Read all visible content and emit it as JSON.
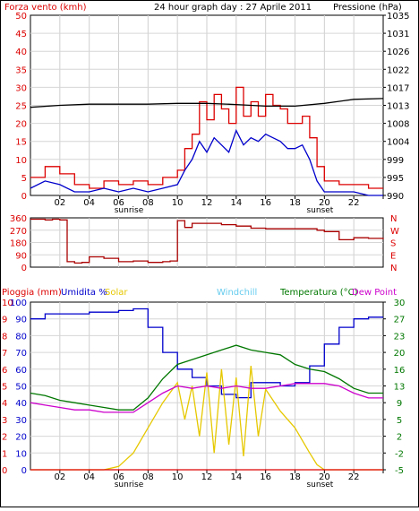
{
  "chart_data": [
    {
      "type": "line",
      "title": "24 hour graph day : 27 Aprile 2011",
      "ylabel_left": "Forza vento (kmh)",
      "ylabel_right": "Pressione (hPa)",
      "x_ticks": [
        "02",
        "04",
        "06",
        "08",
        "10",
        "12",
        "14",
        "16",
        "18",
        "20",
        "22",
        ""
      ],
      "x_markers": [
        "sunrise",
        "sunset"
      ],
      "y_left_ticks": [
        "0",
        "5",
        "10",
        "15",
        "20",
        "25",
        "30",
        "35",
        "40",
        "45",
        "50"
      ],
      "y_left_range": [
        0,
        50
      ],
      "y_right_ticks": [
        "990",
        "995",
        "999",
        "1004",
        "1008",
        "1013",
        "1017",
        "1022",
        "1026",
        "1031",
        "1035"
      ],
      "y_right_range": [
        990,
        1035
      ],
      "series": [
        {
          "color": "#dd0000",
          "x": [
            0,
            1,
            2,
            3,
            4,
            5,
            6,
            7,
            8,
            9,
            10,
            10.5,
            11,
            11.5,
            12,
            12.5,
            13,
            13.5,
            14,
            14.5,
            15,
            15.5,
            16,
            16.5,
            17,
            17.5,
            18,
            18.5,
            19,
            19.5,
            20,
            21,
            22,
            23,
            24
          ],
          "values": [
            5,
            8,
            6,
            3,
            2,
            4,
            3,
            4,
            3,
            5,
            7,
            13,
            17,
            26,
            21,
            28,
            24,
            20,
            30,
            22,
            26,
            22,
            28,
            25,
            24,
            20,
            20,
            22,
            16,
            8,
            4,
            3,
            3,
            2,
            2
          ]
        },
        {
          "color": "#0000cc",
          "x": [
            0,
            1,
            2,
            3,
            4,
            5,
            6,
            7,
            8,
            9,
            10,
            10.5,
            11,
            11.5,
            12,
            12.5,
            13,
            13.5,
            14,
            14.5,
            15,
            15.5,
            16,
            16.5,
            17,
            17.5,
            18,
            18.5,
            19,
            19.5,
            20,
            21,
            22,
            23,
            24
          ],
          "values": [
            2,
            4,
            3,
            1,
            1,
            2,
            1,
            2,
            1,
            2,
            3,
            7,
            10,
            15,
            12,
            16,
            14,
            12,
            18,
            14,
            16,
            15,
            17,
            16,
            15,
            13,
            13,
            14,
            10,
            4,
            1,
            1,
            1,
            0,
            0
          ]
        },
        {
          "color": "#000000",
          "x": [
            0,
            2,
            4,
            6,
            8,
            10,
            12,
            14,
            16,
            18,
            20,
            22,
            24
          ],
          "values": [
            1012,
            1012.5,
            1012.8,
            1012.8,
            1012.8,
            1013,
            1013,
            1012.7,
            1012.3,
            1012.3,
            1013,
            1014,
            1014.2
          ]
        }
      ]
    },
    {
      "type": "line",
      "y_ticks": [
        "360",
        "270",
        "180",
        "90",
        "0"
      ],
      "y_range": [
        0,
        360
      ],
      "compass_labels": [
        "N",
        "W",
        "S",
        "E",
        "N"
      ],
      "series": [
        {
          "color": "#aa0000",
          "x": [
            0,
            0.5,
            1,
            1.5,
            2,
            2.5,
            3,
            3.5,
            4,
            5,
            6,
            7,
            8,
            9,
            9.5,
            10,
            10.5,
            11,
            12,
            13,
            14,
            15,
            16,
            17,
            18,
            19,
            19.5,
            20,
            21,
            22,
            23,
            24
          ],
          "values": [
            350,
            350,
            345,
            350,
            345,
            40,
            30,
            35,
            75,
            65,
            40,
            45,
            35,
            40,
            45,
            340,
            290,
            320,
            320,
            310,
            300,
            285,
            280,
            280,
            280,
            280,
            270,
            260,
            200,
            215,
            210,
            205
          ]
        }
      ]
    },
    {
      "type": "line",
      "legend": [
        "Pioggia (mm)",
        "Umidita %",
        "Solar",
        "Windchill",
        "Temperatura (°C)",
        "Dew Point"
      ],
      "legend_colors": [
        "#dd0000",
        "#0000cc",
        "#e6c800",
        "#66ccee",
        "#007700",
        "#cc00cc"
      ],
      "x_ticks": [
        "02",
        "04",
        "06",
        "08",
        "10",
        "12",
        "14",
        "16",
        "18",
        "20",
        "22",
        ""
      ],
      "x_markers": [
        "sunrise",
        "sunset"
      ],
      "y_left_ticks_outer": [
        "0",
        "1",
        "2",
        "3",
        "4",
        "5",
        "6",
        "7",
        "8",
        "9",
        "10"
      ],
      "y_left_ticks_inner": [
        "0",
        "10",
        "20",
        "30",
        "40",
        "50",
        "60",
        "70",
        "80",
        "90",
        "100"
      ],
      "y_right_ticks": [
        "-5",
        "-2",
        "2",
        "5",
        "9",
        "13",
        "16",
        "20",
        "23",
        "27",
        "30"
      ],
      "series": [
        {
          "name": "Umidita %",
          "color": "#0000cc",
          "x": [
            0,
            1,
            2,
            4,
            6,
            7,
            8,
            9,
            10,
            11,
            12,
            13,
            14,
            15,
            16,
            17,
            18,
            19,
            20,
            21,
            22,
            23,
            24
          ],
          "values": [
            90,
            93,
            93,
            94,
            95,
            96,
            85,
            70,
            60,
            55,
            50,
            45,
            43,
            52,
            52,
            50,
            52,
            62,
            75,
            85,
            90,
            91,
            91
          ]
        },
        {
          "name": "Solar",
          "color": "#e6c800",
          "x": [
            0,
            5,
            6,
            7,
            8,
            9,
            10,
            10.5,
            11,
            11.5,
            12,
            12.5,
            13,
            13.5,
            14,
            14.5,
            15,
            15.5,
            16,
            17,
            18,
            19,
            19.5,
            20,
            24
          ],
          "values": [
            0,
            0,
            2,
            10,
            25,
            40,
            52,
            30,
            50,
            20,
            58,
            10,
            60,
            15,
            55,
            8,
            62,
            20,
            48,
            35,
            25,
            10,
            3,
            0,
            0
          ]
        },
        {
          "name": "Temperatura (°C)",
          "color": "#007700",
          "x": [
            0,
            1,
            2,
            3,
            4,
            5,
            6,
            7,
            8,
            9,
            10,
            11,
            12,
            13,
            14,
            15,
            16,
            17,
            18,
            19,
            20,
            21,
            22,
            23,
            24
          ],
          "values": [
            11,
            10.5,
            9.5,
            9,
            8.5,
            8,
            7.5,
            7.5,
            10,
            14,
            17,
            18,
            19,
            20,
            21,
            20,
            19.5,
            19,
            17,
            16,
            15.5,
            14,
            12,
            11,
            11
          ]
        },
        {
          "name": "Dew Point",
          "color": "#cc00cc",
          "x": [
            0,
            1,
            2,
            3,
            4,
            5,
            6,
            7,
            8,
            9,
            10,
            11,
            12,
            13,
            14,
            15,
            16,
            17,
            18,
            19,
            20,
            21,
            22,
            23,
            24
          ],
          "values": [
            9,
            8.5,
            8,
            7.5,
            7.5,
            7,
            7,
            7,
            9,
            11,
            12.5,
            12,
            12.5,
            12,
            12.5,
            12,
            12,
            12.5,
            13,
            13,
            13,
            12.5,
            11,
            10,
            10
          ]
        },
        {
          "name": "Pioggia (mm)",
          "color": "#dd0000",
          "x": [
            0,
            24
          ],
          "values": [
            0,
            0
          ]
        }
      ]
    }
  ]
}
